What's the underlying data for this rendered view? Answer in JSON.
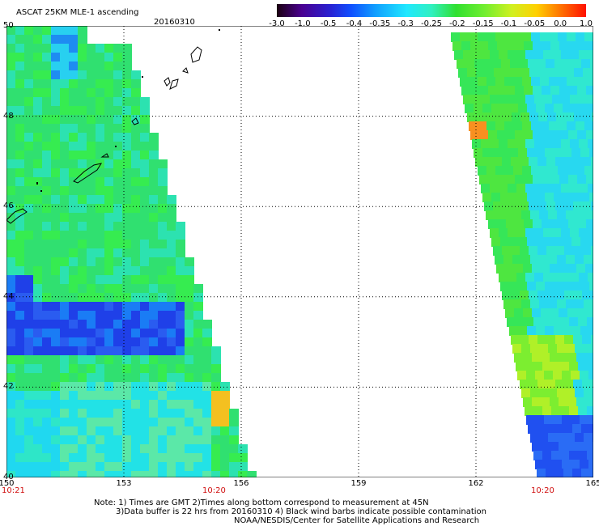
{
  "header": {
    "title": "ASCAT 25KM MLE-1 ascending",
    "date": "20160310"
  },
  "colorbar": {
    "labels": [
      "-3.0",
      "-1.0",
      "-0.5",
      "-0.4",
      "-0.35",
      "-0.3",
      "-0.25",
      "-0.2",
      "-0.15",
      "-0.1",
      "-0.05",
      "0.0",
      "1.0"
    ],
    "colors": [
      "#2a0020",
      "#4a0090",
      "#2020e0",
      "#1060ff",
      "#10a0ff",
      "#20e0ff",
      "#30f0c0",
      "#30e030",
      "#60ee30",
      "#c0f020",
      "#ffe000",
      "#ff8000",
      "#ff2000"
    ]
  },
  "map": {
    "x_ticks": [
      "150",
      "153",
      "156",
      "159",
      "162",
      "165"
    ],
    "y_ticks": [
      "50",
      "48",
      "46",
      "44",
      "42",
      "40"
    ],
    "x_range": [
      150,
      165
    ],
    "y_range": [
      40,
      50
    ]
  },
  "time_labels": {
    "left_start": "10:21",
    "left_end": "10:20",
    "right_end": "10:20"
  },
  "notes": {
    "line1": "Note: 1) Times are GMT 2)Times along bottom correspond to measurement at 45N",
    "line2": "3)Data buffer is 22 hrs from 20160310 4) Black wind barbs indicate possible contamination",
    "line3": "NOAA/NESDIS/Center for Satellite Applications and Research"
  }
}
